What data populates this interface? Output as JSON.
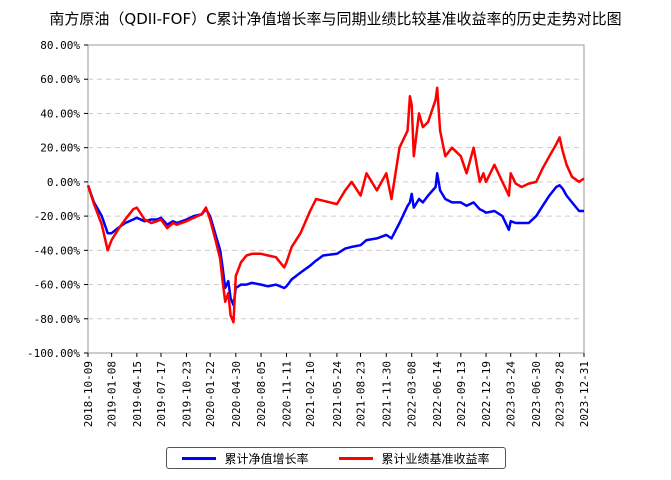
{
  "title": "南方原油（QDII-FOF）C累计净值增长率与同期业绩比较基准收益率的历史走势对比图",
  "chart_data": {
    "type": "line",
    "title": "南方原油（QDII-FOF）C累计净值增长率与同期业绩比较基准收益率的历史走势对比图",
    "xlabel": "",
    "ylabel": "",
    "x_tick_labels": [
      "2018-10-09",
      "2019-01-08",
      "2019-04-15",
      "2019-07-17",
      "2019-10-23",
      "2020-01-22",
      "2020-04-30",
      "2020-08-05",
      "2020-11-11",
      "2021-02-10",
      "2021-05-24",
      "2021-08-23",
      "2021-11-30",
      "2022-03-08",
      "2022-06-14",
      "2022-09-13",
      "2022-12-19",
      "2023-03-24",
      "2023-06-30",
      "2023-09-28",
      "2023-12-31"
    ],
    "y_tick_labels": [
      "80.00%",
      "60.00%",
      "40.00%",
      "20.00%",
      "0.00%",
      "-20.00%",
      "-40.00%",
      "-60.00%",
      "-80.00%",
      "-100.00%"
    ],
    "ylim": [
      -100,
      80
    ],
    "grid": "horizontal dashed",
    "legend_position": "bottom",
    "series": [
      {
        "name": "累计净值增长率",
        "color": "#0000ff",
        "x": [
          "2018-10-09",
          "2018-11-01",
          "2018-12-01",
          "2018-12-24",
          "2019-01-08",
          "2019-02-01",
          "2019-03-01",
          "2019-04-01",
          "2019-04-15",
          "2019-05-15",
          "2019-06-10",
          "2019-07-01",
          "2019-07-17",
          "2019-08-10",
          "2019-09-01",
          "2019-09-16",
          "2019-10-23",
          "2019-11-20",
          "2019-12-20",
          "2020-01-06",
          "2020-01-22",
          "2020-02-10",
          "2020-03-01",
          "2020-03-10",
          "2020-03-20",
          "2020-04-01",
          "2020-04-10",
          "2020-04-21",
          "2020-04-30",
          "2020-05-20",
          "2020-06-10",
          "2020-07-01",
          "2020-08-05",
          "2020-09-01",
          "2020-10-01",
          "2020-11-02",
          "2020-11-11",
          "2020-12-01",
          "2021-01-04",
          "2021-02-10",
          "2021-03-05",
          "2021-04-01",
          "2021-05-24",
          "2021-06-25",
          "2021-07-20",
          "2021-08-23",
          "2021-09-15",
          "2021-10-25",
          "2021-11-30",
          "2021-12-20",
          "2022-01-20",
          "2022-02-20",
          "2022-03-01",
          "2022-03-08",
          "2022-03-16",
          "2022-04-05",
          "2022-04-20",
          "2022-05-10",
          "2022-06-08",
          "2022-06-14",
          "2022-06-25",
          "2022-07-15",
          "2022-08-10",
          "2022-09-13",
          "2022-10-05",
          "2022-11-01",
          "2022-11-25",
          "2022-12-09",
          "2022-12-19",
          "2023-01-20",
          "2023-02-20",
          "2023-03-17",
          "2023-03-24",
          "2023-04-12",
          "2023-05-05",
          "2023-06-01",
          "2023-06-30",
          "2023-07-25",
          "2023-08-20",
          "2023-09-15",
          "2023-09-28",
          "2023-10-10",
          "2023-10-25",
          "2023-11-15",
          "2023-12-12",
          "2023-12-31"
        ],
        "values": [
          -2,
          -12,
          -20,
          -30,
          -30,
          -27,
          -24,
          -22,
          -21,
          -23,
          -22,
          -22,
          -21,
          -25,
          -23,
          -24,
          -22,
          -20,
          -19,
          -16,
          -20,
          -30,
          -40,
          -50,
          -62,
          -58,
          -68,
          -72,
          -62,
          -60,
          -60,
          -59,
          -60,
          -61,
          -60,
          -62,
          -61,
          -57,
          -53,
          -49,
          -46,
          -43,
          -42,
          -39,
          -38,
          -37,
          -34,
          -33,
          -31,
          -33,
          -24,
          -14,
          -12,
          -7,
          -15,
          -10,
          -12,
          -8,
          -3,
          5,
          -5,
          -10,
          -12,
          -12,
          -14,
          -12,
          -16,
          -17,
          -18,
          -17,
          -20,
          -28,
          -23,
          -24,
          -24,
          -24,
          -20,
          -14,
          -8,
          -3,
          -2,
          -4,
          -8,
          -12,
          -17,
          -17
        ]
      },
      {
        "name": "累计业绩基准收益率",
        "color": "#ff0000",
        "x": [
          "2018-10-09",
          "2018-11-01",
          "2018-12-01",
          "2018-12-24",
          "2019-01-08",
          "2019-02-01",
          "2019-03-01",
          "2019-04-01",
          "2019-04-15",
          "2019-05-15",
          "2019-06-10",
          "2019-07-01",
          "2019-07-17",
          "2019-08-10",
          "2019-09-01",
          "2019-09-16",
          "2019-10-23",
          "2019-11-20",
          "2019-12-20",
          "2020-01-06",
          "2020-01-22",
          "2020-02-10",
          "2020-03-01",
          "2020-03-10",
          "2020-03-20",
          "2020-04-01",
          "2020-04-10",
          "2020-04-21",
          "2020-04-30",
          "2020-05-20",
          "2020-06-10",
          "2020-07-01",
          "2020-08-05",
          "2020-09-01",
          "2020-10-01",
          "2020-11-02",
          "2020-11-11",
          "2020-12-01",
          "2021-01-04",
          "2021-02-10",
          "2021-03-05",
          "2021-04-01",
          "2021-05-24",
          "2021-06-25",
          "2021-07-20",
          "2021-08-23",
          "2021-09-15",
          "2021-10-25",
          "2021-11-30",
          "2021-12-20",
          "2022-01-20",
          "2022-02-20",
          "2022-03-01",
          "2022-03-08",
          "2022-03-16",
          "2022-04-05",
          "2022-04-20",
          "2022-05-10",
          "2022-06-08",
          "2022-06-14",
          "2022-06-25",
          "2022-07-15",
          "2022-08-10",
          "2022-09-13",
          "2022-10-05",
          "2022-11-01",
          "2022-11-25",
          "2022-12-09",
          "2022-12-19",
          "2023-01-20",
          "2023-02-20",
          "2023-03-17",
          "2023-03-24",
          "2023-04-12",
          "2023-05-05",
          "2023-06-01",
          "2023-06-30",
          "2023-07-25",
          "2023-08-20",
          "2023-09-15",
          "2023-09-28",
          "2023-10-10",
          "2023-10-25",
          "2023-11-15",
          "2023-12-12",
          "2023-12-31"
        ],
        "values": [
          -2,
          -13,
          -25,
          -40,
          -34,
          -28,
          -22,
          -16,
          -15,
          -22,
          -24,
          -23,
          -22,
          -27,
          -24,
          -25,
          -23,
          -21,
          -19,
          -15,
          -22,
          -33,
          -45,
          -58,
          -70,
          -65,
          -78,
          -82,
          -55,
          -47,
          -43,
          -42,
          -42,
          -43,
          -44,
          -50,
          -47,
          -38,
          -30,
          -17,
          -10,
          -11,
          -13,
          -5,
          0,
          -8,
          5,
          -5,
          5,
          -10,
          20,
          30,
          50,
          45,
          15,
          40,
          32,
          35,
          48,
          55,
          30,
          15,
          20,
          15,
          5,
          20,
          0,
          5,
          0,
          10,
          0,
          -8,
          5,
          -1,
          -3,
          -1,
          0,
          8,
          15,
          22,
          26,
          18,
          10,
          3,
          0,
          2
        ]
      }
    ]
  },
  "legend": {
    "items": [
      {
        "label": "累计净值增长率",
        "color": "#0000ff"
      },
      {
        "label": "累计业绩基准收益率",
        "color": "#ff0000"
      }
    ]
  }
}
